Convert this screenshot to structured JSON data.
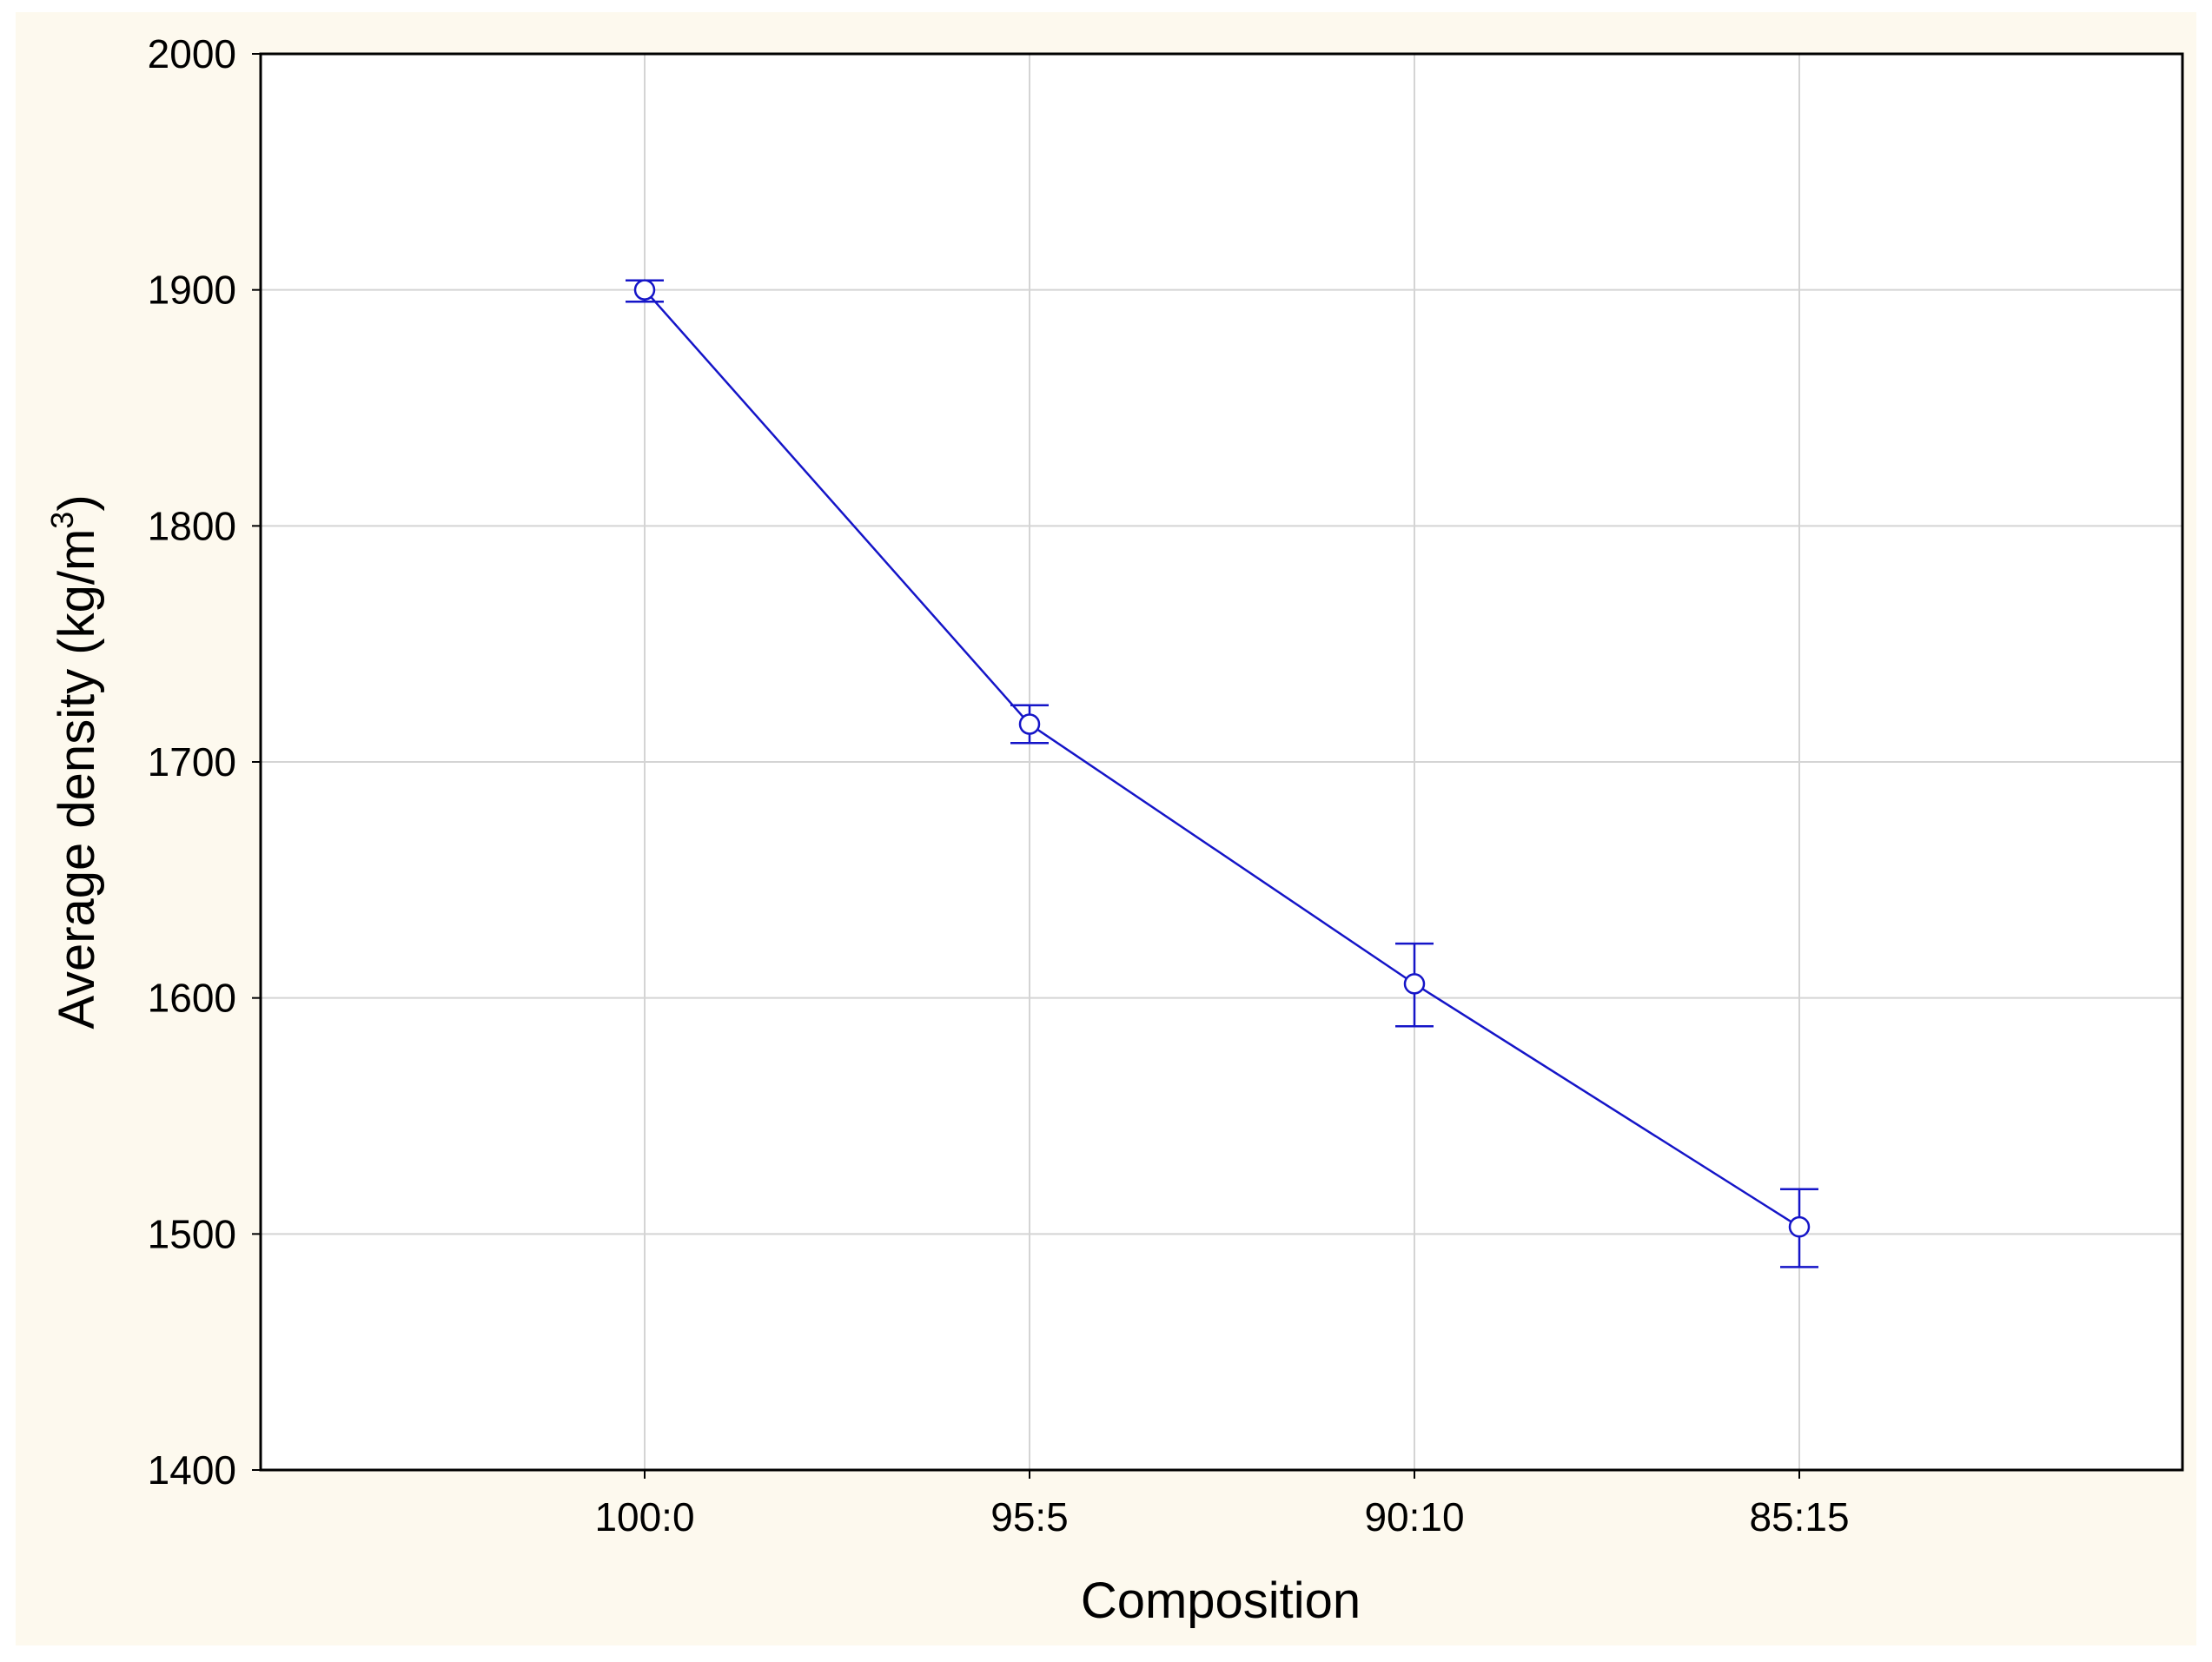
{
  "chart_data": {
    "type": "line",
    "title": "",
    "xlabel": "Composition",
    "ylabel": {
      "text": "Average density (kg/m",
      "superscript": "3",
      "suffix": ")"
    },
    "categories": [
      "100:0",
      "95:5",
      "90:10",
      "85:15"
    ],
    "series": [
      {
        "values": [
          1900,
          1716,
          1606,
          1503
        ],
        "error_low": [
          1895,
          1708,
          1588,
          1486
        ],
        "error_high": [
          1904,
          1724,
          1623,
          1519
        ],
        "marker": "circle-open"
      }
    ],
    "ylim": [
      1400,
      2000
    ],
    "yticks": [
      1400,
      1500,
      1600,
      1700,
      1800,
      1900,
      2000
    ],
    "grid": true,
    "colors": {
      "series": "#1515c8",
      "grid": "#d4d4d4",
      "frame": "#000000",
      "outer_background": "#fdf9ee",
      "plot_background": "#ffffff"
    }
  }
}
